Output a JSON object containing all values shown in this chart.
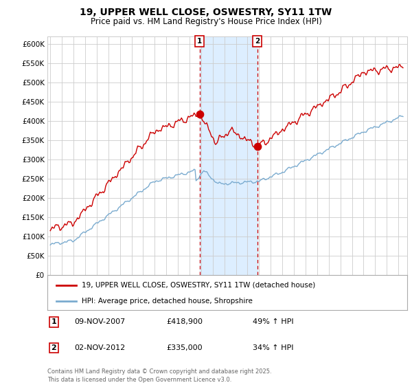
{
  "title": "19, UPPER WELL CLOSE, OSWESTRY, SY11 1TW",
  "subtitle": "Price paid vs. HM Land Registry's House Price Index (HPI)",
  "title_fontsize": 10,
  "subtitle_fontsize": 8.5,
  "red_line_label": "19, UPPER WELL CLOSE, OSWESTRY, SY11 1TW (detached house)",
  "blue_line_label": "HPI: Average price, detached house, Shropshire",
  "transaction1_date": "09-NOV-2007",
  "transaction1_price": 418900,
  "transaction1_label": "49% ↑ HPI",
  "transaction2_date": "02-NOV-2012",
  "transaction2_price": 335000,
  "transaction2_label": "34% ↑ HPI",
  "footnote": "Contains HM Land Registry data © Crown copyright and database right 2025.\nThis data is licensed under the Open Government Licence v3.0.",
  "red_color": "#cc0000",
  "blue_color": "#7aabcf",
  "shade_color": "#ddeeff",
  "dashed_color": "#cc0000",
  "ylim": [
    0,
    620000
  ],
  "ytick_step": 50000,
  "background_color": "#ffffff",
  "grid_color": "#cccccc",
  "transaction1_x": 2007.86,
  "transaction2_x": 2012.84
}
